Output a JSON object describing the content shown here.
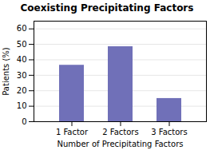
{
  "chart_data": {
    "type": "bar",
    "title": "Coexisting Precipitating Factors",
    "categories": [
      "1 Factor",
      "2 Factors",
      "3 Factors"
    ],
    "values": [
      36.5,
      48.5,
      15.0
    ],
    "color": "#7070b8",
    "xlabel": "Number of Precipitating Factors",
    "ylabel": "Patients (%)",
    "ylim": [
      0,
      65
    ],
    "yticks": [
      0,
      10,
      20,
      30,
      40,
      50,
      60
    ],
    "grid": true
  }
}
